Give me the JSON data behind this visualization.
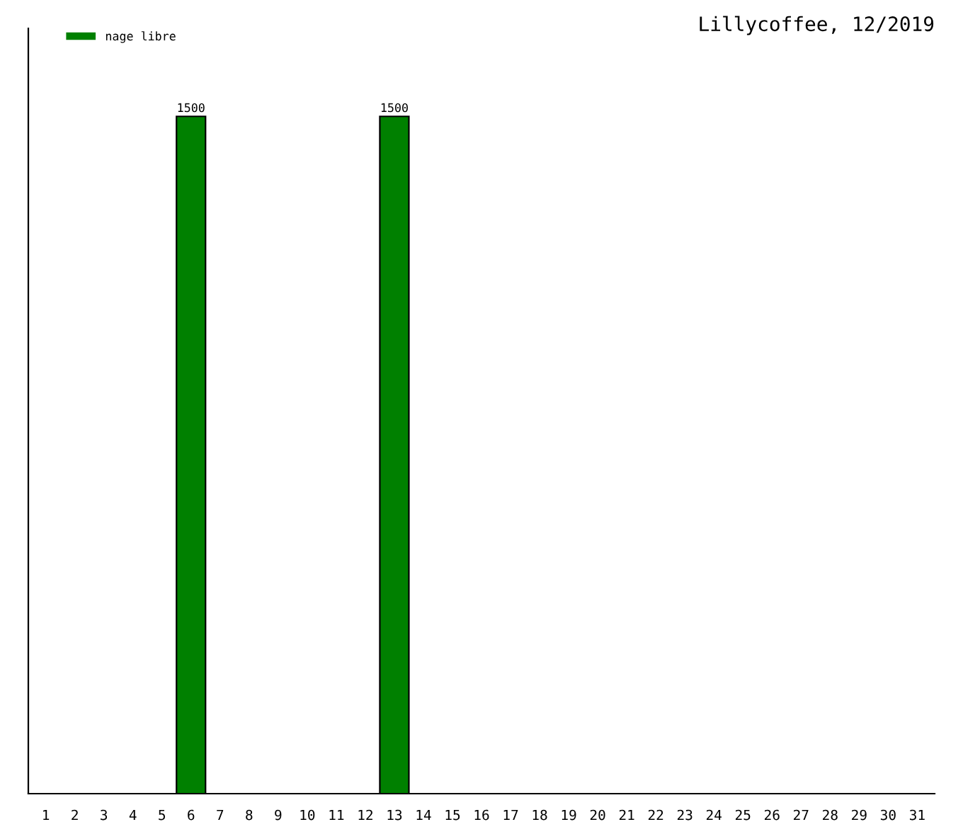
{
  "chart_data": {
    "type": "bar",
    "title": "Lillycoffee, 12/2019",
    "categories": [
      "1",
      "2",
      "3",
      "4",
      "5",
      "6",
      "7",
      "8",
      "9",
      "10",
      "11",
      "12",
      "13",
      "14",
      "15",
      "16",
      "17",
      "18",
      "19",
      "20",
      "21",
      "22",
      "23",
      "24",
      "25",
      "26",
      "27",
      "28",
      "29",
      "30",
      "31"
    ],
    "series": [
      {
        "name": "nage libre",
        "color": "#008000",
        "values": [
          null,
          null,
          null,
          null,
          null,
          1500,
          null,
          null,
          null,
          null,
          null,
          null,
          1500,
          null,
          null,
          null,
          null,
          null,
          null,
          null,
          null,
          null,
          null,
          null,
          null,
          null,
          null,
          null,
          null,
          null,
          null
        ]
      }
    ],
    "data_labels": true,
    "legend": "top left",
    "grid": false
  }
}
